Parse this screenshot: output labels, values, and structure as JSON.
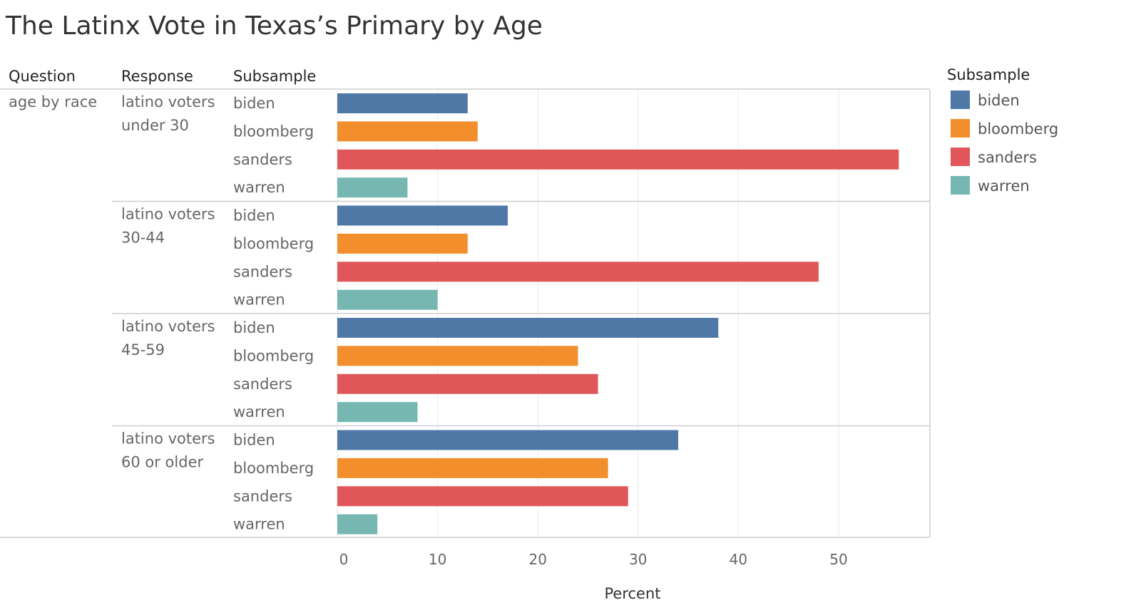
{
  "title": "The Latinx Vote in Texas’s Primary by Age",
  "headers": {
    "question": "Question",
    "response": "Response",
    "subsample": "Subsample"
  },
  "question_value": "age by race",
  "legend": {
    "title": "Subsample",
    "items": [
      {
        "label": "biden",
        "color": "#4e79a7"
      },
      {
        "label": "bloomberg",
        "color": "#f28e2b"
      },
      {
        "label": "sanders",
        "color": "#e15759"
      },
      {
        "label": "warren",
        "color": "#76b7b2"
      }
    ]
  },
  "chart_data": {
    "type": "bar",
    "orientation": "horizontal",
    "xlabel": "Percent",
    "xlim": [
      0,
      58
    ],
    "xticks": [
      0,
      10,
      20,
      30,
      40,
      50
    ],
    "grid": true,
    "legend_position": "right",
    "groups": [
      {
        "line1": "latino voters",
        "line2": "under 30",
        "categories": [
          "biden",
          "bloomberg",
          "sanders",
          "warren"
        ],
        "values": [
          13,
          14,
          56,
          7
        ]
      },
      {
        "line1": "latino voters",
        "line2": "30-44",
        "categories": [
          "biden",
          "bloomberg",
          "sanders",
          "warren"
        ],
        "values": [
          17,
          13,
          48,
          10
        ]
      },
      {
        "line1": "latino voters",
        "line2": "45-59",
        "categories": [
          "biden",
          "bloomberg",
          "sanders",
          "warren"
        ],
        "values": [
          38,
          24,
          26,
          8
        ]
      },
      {
        "line1": "latino voters",
        "line2": "60 or older",
        "categories": [
          "biden",
          "bloomberg",
          "sanders",
          "warren"
        ],
        "values": [
          34,
          27,
          29,
          4
        ]
      }
    ]
  }
}
